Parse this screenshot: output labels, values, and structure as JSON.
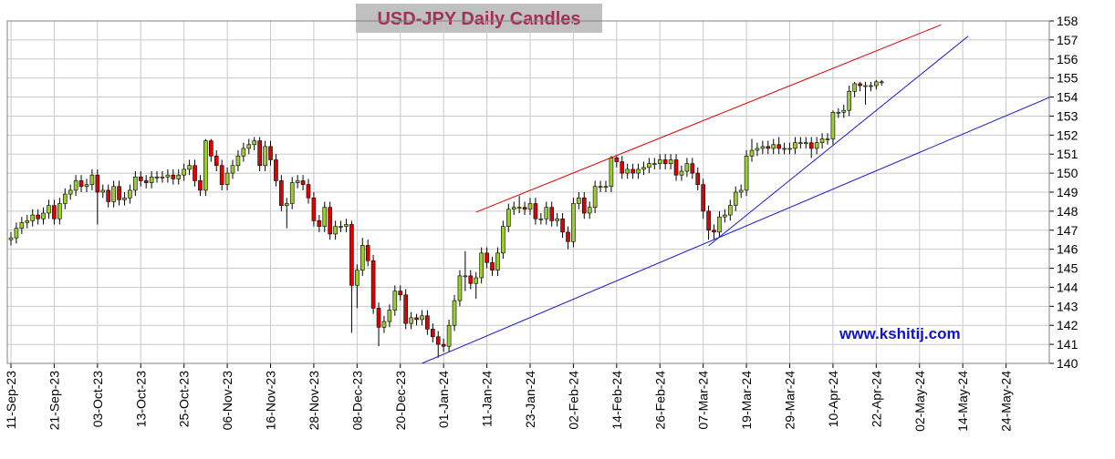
{
  "chart_data": {
    "type": "candlestick",
    "title": "USD-JPY Daily Candles",
    "watermark": "www.kshitij.com",
    "up_color": "#9acd32",
    "down_color": "#e00000",
    "grid": true,
    "ylim": [
      140,
      158
    ],
    "yticks": [
      140,
      141,
      142,
      143,
      144,
      145,
      146,
      147,
      148,
      149,
      150,
      151,
      152,
      153,
      154,
      155,
      156,
      157,
      158
    ],
    "xlim": [
      "11-Sep-23",
      "05-Jun-24"
    ],
    "xticks": [
      "11-Sep-23",
      "21-Sep-23",
      "03-Oct-23",
      "13-Oct-23",
      "25-Oct-23",
      "06-Nov-23",
      "16-Nov-23",
      "28-Nov-23",
      "08-Dec-23",
      "20-Dec-23",
      "01-Jan-24",
      "11-Jan-24",
      "23-Jan-24",
      "02-Feb-24",
      "14-Feb-24",
      "26-Feb-24",
      "07-Mar-24",
      "19-Mar-24",
      "29-Mar-24",
      "10-Apr-24",
      "22-Apr-24",
      "02-May-24",
      "14-May-24",
      "24-May-24"
    ],
    "x": [
      "11-Sep-23",
      "12-Sep-23",
      "13-Sep-23",
      "14-Sep-23",
      "15-Sep-23",
      "18-Sep-23",
      "19-Sep-23",
      "20-Sep-23",
      "21-Sep-23",
      "22-Sep-23",
      "25-Sep-23",
      "26-Sep-23",
      "27-Sep-23",
      "28-Sep-23",
      "29-Sep-23",
      "02-Oct-23",
      "03-Oct-23",
      "04-Oct-23",
      "05-Oct-23",
      "06-Oct-23",
      "09-Oct-23",
      "10-Oct-23",
      "11-Oct-23",
      "12-Oct-23",
      "13-Oct-23",
      "16-Oct-23",
      "17-Oct-23",
      "18-Oct-23",
      "19-Oct-23",
      "20-Oct-23",
      "23-Oct-23",
      "24-Oct-23",
      "25-Oct-23",
      "26-Oct-23",
      "27-Oct-23",
      "30-Oct-23",
      "31-Oct-23",
      "01-Nov-23",
      "02-Nov-23",
      "03-Nov-23",
      "06-Nov-23",
      "07-Nov-23",
      "08-Nov-23",
      "09-Nov-23",
      "10-Nov-23",
      "13-Nov-23",
      "14-Nov-23",
      "15-Nov-23",
      "16-Nov-23",
      "17-Nov-23",
      "20-Nov-23",
      "21-Nov-23",
      "22-Nov-23",
      "23-Nov-23",
      "24-Nov-23",
      "27-Nov-23",
      "28-Nov-23",
      "29-Nov-23",
      "30-Nov-23",
      "01-Dec-23",
      "04-Dec-23",
      "05-Dec-23",
      "06-Dec-23",
      "07-Dec-23",
      "08-Dec-23",
      "11-Dec-23",
      "12-Dec-23",
      "13-Dec-23",
      "14-Dec-23",
      "15-Dec-23",
      "18-Dec-23",
      "19-Dec-23",
      "20-Dec-23",
      "21-Dec-23",
      "22-Dec-23",
      "25-Dec-23",
      "26-Dec-23",
      "27-Dec-23",
      "28-Dec-23",
      "29-Dec-23",
      "01-Jan-24",
      "02-Jan-24",
      "03-Jan-24",
      "04-Jan-24",
      "05-Jan-24",
      "08-Jan-24",
      "09-Jan-24",
      "10-Jan-24",
      "11-Jan-24",
      "12-Jan-24",
      "15-Jan-24",
      "16-Jan-24",
      "17-Jan-24",
      "18-Jan-24",
      "19-Jan-24",
      "22-Jan-24",
      "23-Jan-24",
      "24-Jan-24",
      "25-Jan-24",
      "26-Jan-24",
      "29-Jan-24",
      "30-Jan-24",
      "31-Jan-24",
      "01-Feb-24",
      "02-Feb-24",
      "05-Feb-24",
      "06-Feb-24",
      "07-Feb-24",
      "08-Feb-24",
      "09-Feb-24",
      "12-Feb-24",
      "13-Feb-24",
      "14-Feb-24",
      "15-Feb-24",
      "16-Feb-24",
      "19-Feb-24",
      "20-Feb-24",
      "21-Feb-24",
      "22-Feb-24",
      "23-Feb-24",
      "26-Feb-24",
      "27-Feb-24",
      "28-Feb-24",
      "29-Feb-24",
      "01-Mar-24",
      "04-Mar-24",
      "05-Mar-24",
      "06-Mar-24",
      "07-Mar-24",
      "08-Mar-24",
      "11-Mar-24",
      "12-Mar-24",
      "13-Mar-24",
      "14-Mar-24",
      "15-Mar-24",
      "18-Mar-24",
      "19-Mar-24",
      "20-Mar-24",
      "21-Mar-24",
      "22-Mar-24",
      "25-Mar-24",
      "26-Mar-24",
      "27-Mar-24",
      "28-Mar-24",
      "29-Mar-24",
      "01-Apr-24",
      "02-Apr-24",
      "03-Apr-24",
      "04-Apr-24",
      "05-Apr-24",
      "08-Apr-24",
      "09-Apr-24",
      "10-Apr-24",
      "11-Apr-24",
      "12-Apr-24",
      "15-Apr-24",
      "16-Apr-24",
      "17-Apr-24",
      "18-Apr-24",
      "19-Apr-24",
      "22-Apr-24",
      "23-Apr-24"
    ],
    "open": [
      146.5,
      146.6,
      147.1,
      147.4,
      147.5,
      147.8,
      147.6,
      147.9,
      148.3,
      147.6,
      148.4,
      148.9,
      149.1,
      149.6,
      149.3,
      149.4,
      149.9,
      149.0,
      149.1,
      148.5,
      149.3,
      148.6,
      148.7,
      149.1,
      149.8,
      149.6,
      149.5,
      149.8,
      149.8,
      149.8,
      149.9,
      149.7,
      149.9,
      150.2,
      150.4,
      149.6,
      149.1,
      151.7,
      150.9,
      150.4,
      149.4,
      150.0,
      150.4,
      150.9,
      151.3,
      151.5,
      151.7,
      150.4,
      151.4,
      150.7,
      149.6,
      148.3,
      148.4,
      149.5,
      149.6,
      149.4,
      148.7,
      147.5,
      147.2,
      148.2,
      146.8,
      147.2,
      147.2,
      147.3,
      144.1,
      144.9,
      146.2,
      145.4,
      142.9,
      141.9,
      142.2,
      142.8,
      143.8,
      143.6,
      142.1,
      142.4,
      142.3,
      142.5,
      141.8,
      141.4,
      141.0,
      140.9,
      142.0,
      143.3,
      144.6,
      144.6,
      144.2,
      144.5,
      145.8,
      145.3,
      144.9,
      145.8,
      147.2,
      148.1,
      148.2,
      148.2,
      148.1,
      148.4,
      147.6,
      147.6,
      148.2,
      147.5,
      147.6,
      146.9,
      146.4,
      148.4,
      148.7,
      147.9,
      148.2,
      149.3,
      149.3,
      149.3,
      150.8,
      150.6,
      150.0,
      150.2,
      150.0,
      150.2,
      150.3,
      150.5,
      150.5,
      150.7,
      150.5,
      150.7,
      149.9,
      150.1,
      150.5,
      150.0,
      149.4,
      148.0,
      147.0,
      146.9,
      147.7,
      147.8,
      148.3,
      149.0,
      149.1,
      150.9,
      151.2,
      151.3,
      151.4,
      151.3,
      151.5,
      151.3,
      151.3,
      151.3,
      151.6,
      151.6,
      151.6,
      151.3,
      151.6,
      151.8,
      151.8,
      153.2,
      153.2,
      153.3,
      154.3,
      154.7,
      154.6,
      154.6,
      154.6,
      154.8
    ],
    "high": [
      146.9,
      147.4,
      147.7,
      147.8,
      148.1,
      148.1,
      148.2,
      148.6,
      148.6,
      148.7,
      149.2,
      149.4,
      149.9,
      149.9,
      149.7,
      150.2,
      150.2,
      149.4,
      149.4,
      149.6,
      149.6,
      149.0,
      149.4,
      150.1,
      150.1,
      149.9,
      150.1,
      150.1,
      150.1,
      150.2,
      150.2,
      150.2,
      150.5,
      150.7,
      150.7,
      149.9,
      151.8,
      151.8,
      151.2,
      150.7,
      150.3,
      150.7,
      151.2,
      151.6,
      151.8,
      151.9,
      151.9,
      151.7,
      151.7,
      151.0,
      149.9,
      148.7,
      149.8,
      149.9,
      149.9,
      149.7,
      149.0,
      147.8,
      148.5,
      148.5,
      147.5,
      147.5,
      147.6,
      147.5,
      145.2,
      146.6,
      146.5,
      145.7,
      143.2,
      142.5,
      143.1,
      144.1,
      144.1,
      143.9,
      142.7,
      142.6,
      142.8,
      142.8,
      142.1,
      141.7,
      141.3,
      142.3,
      143.6,
      144.9,
      145.9,
      144.9,
      144.8,
      146.1,
      146.1,
      145.6,
      146.1,
      147.5,
      148.4,
      148.5,
      148.8,
      148.5,
      148.7,
      148.7,
      147.9,
      148.5,
      148.5,
      147.9,
      147.9,
      147.2,
      148.7,
      149.0,
      149.0,
      148.5,
      149.6,
      149.6,
      149.6,
      150.9,
      150.9,
      150.9,
      150.5,
      150.5,
      150.5,
      150.6,
      150.8,
      150.8,
      151.0,
      151.0,
      151.0,
      151.0,
      150.4,
      150.8,
      150.8,
      150.3,
      149.7,
      148.3,
      147.3,
      148.0,
      148.1,
      148.6,
      149.3,
      149.4,
      151.2,
      151.8,
      151.6,
      151.7,
      151.7,
      151.8,
      151.9,
      151.6,
      151.6,
      151.9,
      151.9,
      151.9,
      151.9,
      151.9,
      152.1,
      152.1,
      153.3,
      153.4,
      153.6,
      154.6,
      154.8,
      154.8,
      154.8,
      154.8,
      154.9,
      154.9
    ],
    "low": [
      146.2,
      146.3,
      146.8,
      147.1,
      147.2,
      147.3,
      147.3,
      147.6,
      147.3,
      147.3,
      148.1,
      148.6,
      148.8,
      149.0,
      149.0,
      149.1,
      147.3,
      148.7,
      148.2,
      148.2,
      148.3,
      148.3,
      148.4,
      148.8,
      149.3,
      149.2,
      149.2,
      149.5,
      149.5,
      149.5,
      149.4,
      149.4,
      149.6,
      149.9,
      149.3,
      148.8,
      148.8,
      150.6,
      150.1,
      149.1,
      149.1,
      149.7,
      150.1,
      150.6,
      151.0,
      151.2,
      150.1,
      150.1,
      150.4,
      149.3,
      148.0,
      147.1,
      148.1,
      149.2,
      149.1,
      148.4,
      147.2,
      146.9,
      146.9,
      146.5,
      146.5,
      146.9,
      146.9,
      141.6,
      142.9,
      144.6,
      145.1,
      142.6,
      140.9,
      141.6,
      141.9,
      142.5,
      143.3,
      141.8,
      141.8,
      142.0,
      142.0,
      141.5,
      141.1,
      140.3,
      140.6,
      140.6,
      141.7,
      143.0,
      143.8,
      143.9,
      143.4,
      144.2,
      145.0,
      144.6,
      144.6,
      145.5,
      146.9,
      147.8,
      147.9,
      147.8,
      147.8,
      147.3,
      147.3,
      147.3,
      147.2,
      147.2,
      146.6,
      146.0,
      146.1,
      148.1,
      147.6,
      147.6,
      147.9,
      149.0,
      149.0,
      149.0,
      150.3,
      149.7,
      149.7,
      149.7,
      149.7,
      149.9,
      150.0,
      150.2,
      150.2,
      150.2,
      150.2,
      149.6,
      149.6,
      149.8,
      149.7,
      149.1,
      147.6,
      146.5,
      146.5,
      146.6,
      147.4,
      147.5,
      148.0,
      148.7,
      148.8,
      150.6,
      150.9,
      151.0,
      151.0,
      151.0,
      151.0,
      151.0,
      151.0,
      151.0,
      151.3,
      151.3,
      150.8,
      151.0,
      151.3,
      151.5,
      151.5,
      152.9,
      152.9,
      153.0,
      154.0,
      154.3,
      153.6,
      154.3,
      154.4,
      154.6
    ],
    "close": [
      146.6,
      147.1,
      147.4,
      147.5,
      147.8,
      147.6,
      147.9,
      148.3,
      147.6,
      148.4,
      148.9,
      149.1,
      149.6,
      149.3,
      149.4,
      149.9,
      149.0,
      149.1,
      148.5,
      149.3,
      148.6,
      148.7,
      149.1,
      149.8,
      149.6,
      149.5,
      149.8,
      149.8,
      149.8,
      149.9,
      149.7,
      149.9,
      150.2,
      150.4,
      149.6,
      149.1,
      151.7,
      150.9,
      150.4,
      149.4,
      150.0,
      150.4,
      150.9,
      151.3,
      151.5,
      151.7,
      150.4,
      151.4,
      150.7,
      149.6,
      148.3,
      148.4,
      149.5,
      149.6,
      149.4,
      148.7,
      147.5,
      147.2,
      148.2,
      146.8,
      147.2,
      147.2,
      147.3,
      144.1,
      144.9,
      146.2,
      145.4,
      142.9,
      141.9,
      142.2,
      142.8,
      143.8,
      143.6,
      142.1,
      142.4,
      142.3,
      142.5,
      141.8,
      141.4,
      141.0,
      140.9,
      142.0,
      143.3,
      144.6,
      144.6,
      144.2,
      144.5,
      145.8,
      145.3,
      144.9,
      145.8,
      147.2,
      148.1,
      148.2,
      148.2,
      148.1,
      148.4,
      147.6,
      147.6,
      148.2,
      147.5,
      147.6,
      146.9,
      146.4,
      148.4,
      148.7,
      147.9,
      148.2,
      149.3,
      149.3,
      149.3,
      150.8,
      150.6,
      150.0,
      150.2,
      150.0,
      150.2,
      150.3,
      150.5,
      150.5,
      150.7,
      150.5,
      150.7,
      149.9,
      150.1,
      150.5,
      150.0,
      149.4,
      148.0,
      147.0,
      146.9,
      147.7,
      147.8,
      148.3,
      149.0,
      149.1,
      150.9,
      151.2,
      151.3,
      151.4,
      151.3,
      151.5,
      151.3,
      151.3,
      151.3,
      151.6,
      151.6,
      151.6,
      151.3,
      151.6,
      151.8,
      151.8,
      153.2,
      153.2,
      153.3,
      154.3,
      154.7,
      154.6,
      154.6,
      154.6,
      154.8,
      154.8
    ],
    "trendlines": [
      {
        "color": "#e00000",
        "points": [
          {
            "x": "09-Jan-24",
            "y": 147.95
          },
          {
            "x": "08-May-24",
            "y": 157.8
          }
        ]
      },
      {
        "color": "#1a1ad0",
        "points": [
          {
            "x": "26-Dec-23",
            "y": 140
          },
          {
            "x": "05-Jun-24",
            "y": 153.98
          }
        ]
      },
      {
        "color": "#1a1ad0",
        "points": [
          {
            "x": "08-Mar-24",
            "y": 146.18
          },
          {
            "x": "15-May-24",
            "y": 157.2
          }
        ]
      }
    ]
  }
}
